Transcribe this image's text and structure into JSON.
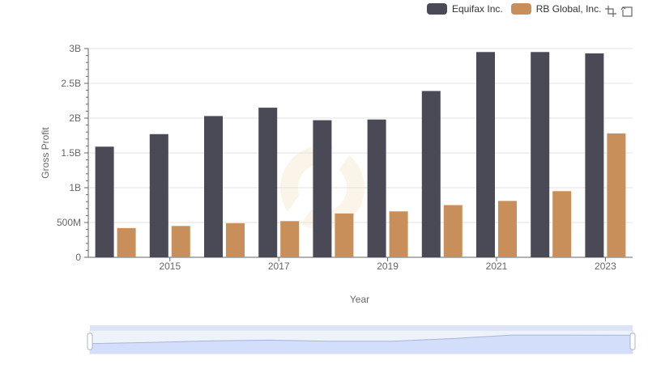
{
  "legend": {
    "items": [
      {
        "label": "Equifax Inc.",
        "color": "#4a4a57"
      },
      {
        "label": "RB Global, Inc.",
        "color": "#c98f5b"
      }
    ]
  },
  "toolbox": {
    "icons": [
      "zoom-icon",
      "restore-icon"
    ]
  },
  "chart_data": {
    "type": "bar",
    "x": [
      2014,
      2015,
      2016,
      2017,
      2018,
      2019,
      2020,
      2021,
      2022,
      2023
    ],
    "x_tick_labels": [
      "2015",
      "2017",
      "2019",
      "2021",
      "2023"
    ],
    "xlabel": "Year",
    "ylabel": "Gross Profit",
    "ylim": [
      0,
      3000000000
    ],
    "y_ticks": [
      0,
      500000000,
      1000000000,
      1500000000,
      2000000000,
      2500000000,
      3000000000
    ],
    "y_tick_labels": [
      "0",
      "500M",
      "1B",
      "1.5B",
      "2B",
      "2.5B",
      "3B"
    ],
    "grid": true,
    "legend_position": "top-right",
    "series": [
      {
        "name": "Equifax Inc.",
        "color": "#4a4a57",
        "values": [
          1590000000,
          1770000000,
          2030000000,
          2150000000,
          1970000000,
          1980000000,
          2390000000,
          2950000000,
          2950000000,
          2930000000
        ]
      },
      {
        "name": "RB Global, Inc.",
        "color": "#c98f5b",
        "values": [
          420000000,
          450000000,
          490000000,
          520000000,
          630000000,
          660000000,
          750000000,
          810000000,
          950000000,
          1780000000
        ]
      }
    ]
  }
}
